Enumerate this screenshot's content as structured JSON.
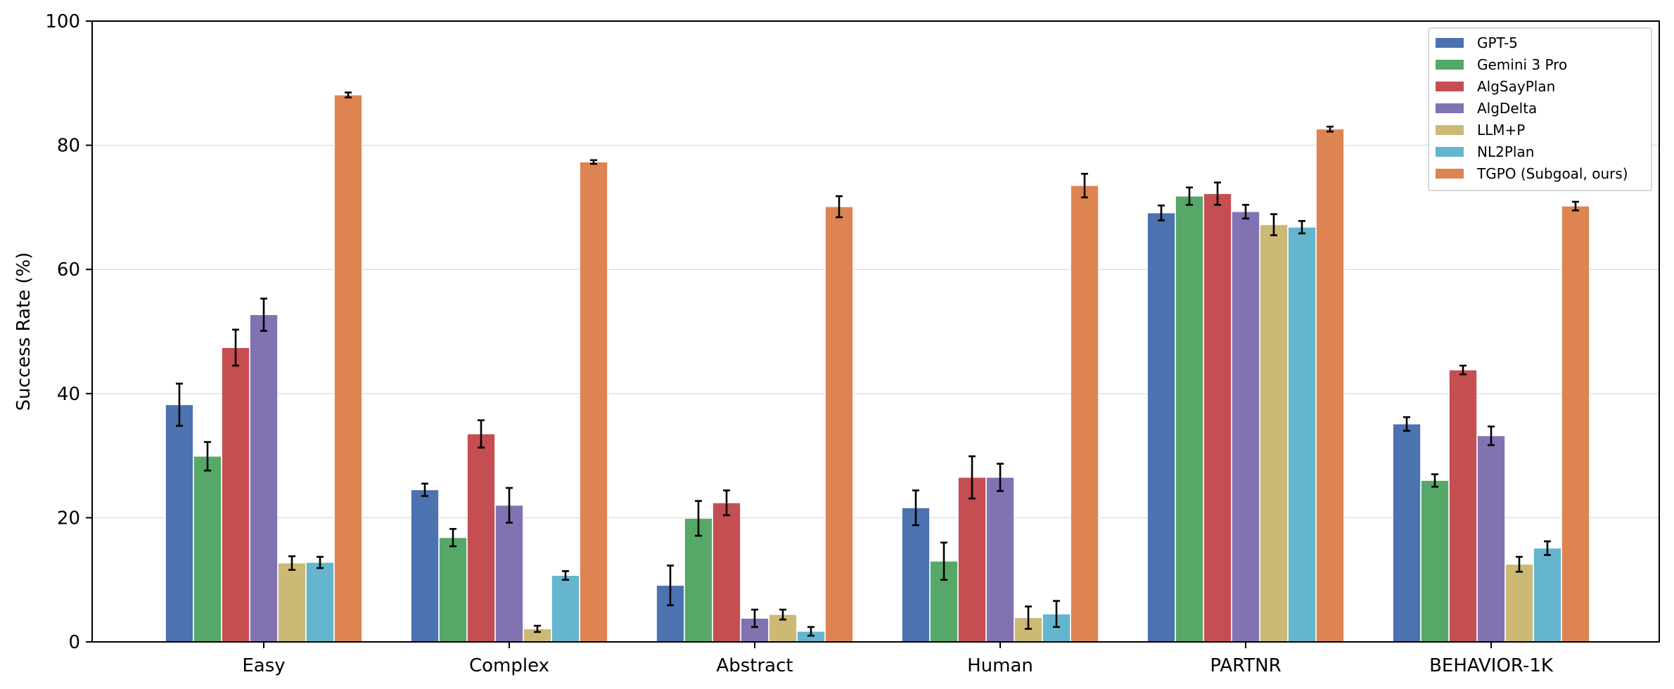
{
  "chart_data": {
    "type": "bar",
    "title": "",
    "xlabel": "",
    "ylabel": "Success Rate (%)",
    "ylim": [
      0,
      100
    ],
    "yticks": [
      0,
      20,
      40,
      60,
      80,
      100
    ],
    "grid": "horizontal",
    "legend_position": "top-right",
    "categories": [
      "Easy",
      "Complex",
      "Abstract",
      "Human",
      "PARTNR",
      "BEHAVIOR-1K"
    ],
    "series": [
      {
        "name": "GPT-5",
        "color": "#4c72b0",
        "values": [
          38.2,
          24.5,
          9.1,
          21.6,
          69.1,
          35.1
        ],
        "errors": [
          3.4,
          1.0,
          3.2,
          2.8,
          1.2,
          1.1
        ]
      },
      {
        "name": "Gemini 3 Pro",
        "color": "#55a868",
        "values": [
          29.9,
          16.8,
          19.9,
          13.0,
          71.8,
          26.0
        ],
        "errors": [
          2.3,
          1.4,
          2.8,
          3.0,
          1.4,
          1.0
        ]
      },
      {
        "name": "AlgSayPlan",
        "color": "#c44e52",
        "values": [
          47.4,
          33.5,
          22.4,
          26.5,
          72.2,
          43.8
        ],
        "errors": [
          2.9,
          2.2,
          2.0,
          3.4,
          1.8,
          0.7
        ]
      },
      {
        "name": "AlgDelta",
        "color": "#8172b2",
        "values": [
          52.7,
          22.0,
          3.8,
          26.5,
          69.3,
          33.2
        ],
        "errors": [
          2.6,
          2.8,
          1.4,
          2.2,
          1.1,
          1.5
        ]
      },
      {
        "name": "LLM+P",
        "color": "#ccb974",
        "values": [
          12.7,
          2.1,
          4.4,
          3.9,
          67.2,
          12.5
        ],
        "errors": [
          1.1,
          0.5,
          0.8,
          1.8,
          1.7,
          1.2
        ]
      },
      {
        "name": "NL2Plan",
        "color": "#64b5cd",
        "values": [
          12.8,
          10.7,
          1.7,
          4.5,
          66.8,
          15.1
        ],
        "errors": [
          0.9,
          0.7,
          0.7,
          2.1,
          1.0,
          1.1
        ]
      },
      {
        "name": "TGPO (Subgoal, ours)",
        "color": "#dd8452",
        "values": [
          88.1,
          77.3,
          70.1,
          73.5,
          82.6,
          70.2
        ],
        "errors": [
          0.4,
          0.3,
          1.7,
          1.9,
          0.4,
          0.7
        ]
      }
    ]
  }
}
